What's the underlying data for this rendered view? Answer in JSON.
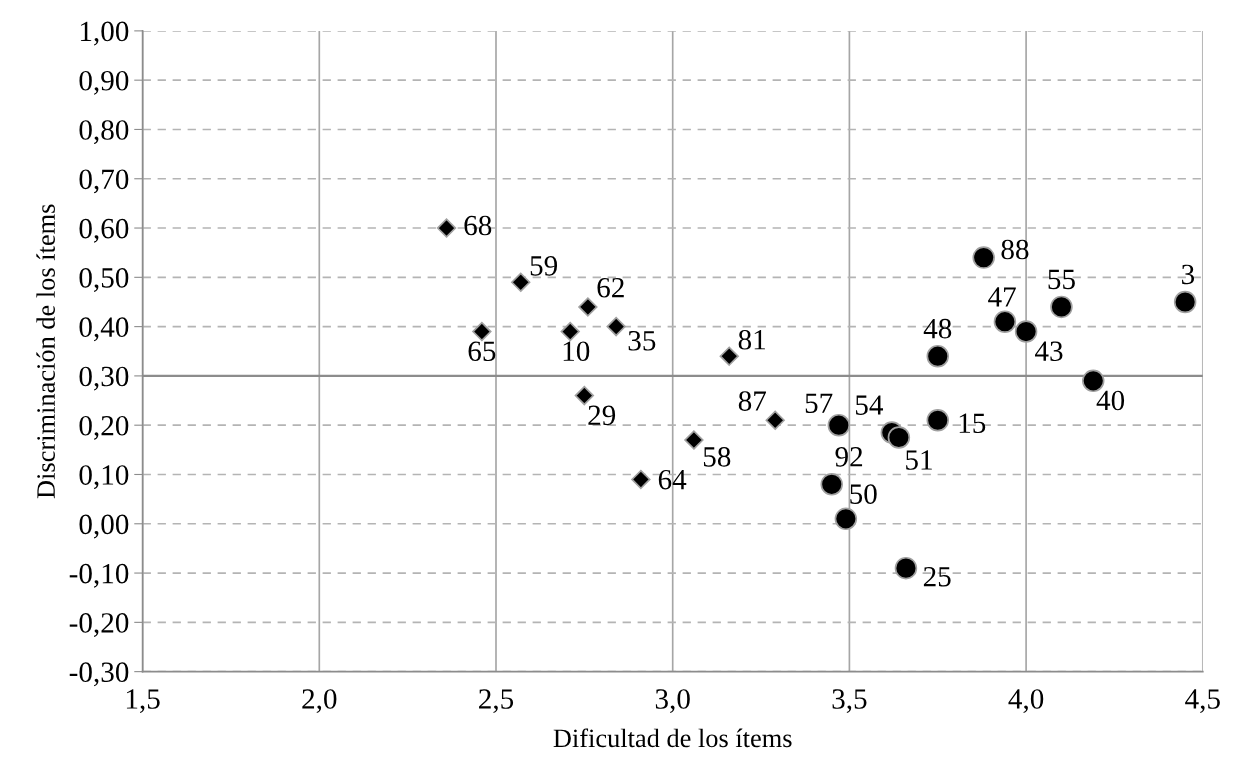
{
  "chart_data": {
    "type": "scatter",
    "xlabel": "Dificultad de los ítems",
    "ylabel": "Discriminación de los ítems",
    "xlim": [
      1.5,
      4.5
    ],
    "xticks": [
      {
        "value": 1.5,
        "label": "1,5"
      },
      {
        "value": 2.0,
        "label": "2,0"
      },
      {
        "value": 2.5,
        "label": "2,5"
      },
      {
        "value": 3.0,
        "label": "3,0"
      },
      {
        "value": 3.5,
        "label": "3,5"
      },
      {
        "value": 4.0,
        "label": "4,0"
      },
      {
        "value": 4.5,
        "label": "4,5"
      }
    ],
    "ylim": [
      -0.3,
      1.0
    ],
    "yticks": [
      {
        "value": -0.3,
        "label": "-0,30"
      },
      {
        "value": -0.2,
        "label": "-0,20"
      },
      {
        "value": -0.1,
        "label": "-0,10"
      },
      {
        "value": 0.0,
        "label": "0,00"
      },
      {
        "value": 0.1,
        "label": "0,10"
      },
      {
        "value": 0.2,
        "label": "0,20"
      },
      {
        "value": 0.3,
        "label": "0,30"
      },
      {
        "value": 0.4,
        "label": "0,40"
      },
      {
        "value": 0.5,
        "label": "0,50"
      },
      {
        "value": 0.6,
        "label": "0,60"
      },
      {
        "value": 0.7,
        "label": "0,70"
      },
      {
        "value": 0.8,
        "label": "0,80"
      },
      {
        "value": 0.9,
        "label": "0,90"
      },
      {
        "value": 1.0,
        "label": "1,00"
      }
    ],
    "grid": true,
    "legend": false,
    "ref_lines": [
      {
        "axis": "y",
        "value": 0.3,
        "color": "#8c8c8c",
        "line_style": "solid"
      }
    ],
    "series": [
      {
        "color": "#000000",
        "marker": "diamond",
        "x": [
          2.36,
          2.57,
          2.46,
          2.76,
          2.71,
          2.84,
          2.75,
          3.16,
          3.29,
          3.06,
          2.91
        ],
        "values": [
          0.6,
          0.49,
          0.39,
          0.44,
          0.39,
          0.4,
          0.26,
          0.34,
          0.21,
          0.17,
          0.09
        ]
      },
      {
        "color": "#000000",
        "marker": "circle",
        "x": [
          3.47,
          3.62,
          3.64,
          3.75,
          3.45,
          3.49,
          3.66,
          4.19,
          3.75,
          3.88,
          3.94,
          4.0,
          4.1,
          4.45
        ],
        "values": [
          0.2,
          0.185,
          0.175,
          0.21,
          0.08,
          0.01,
          -0.09,
          0.29,
          0.34,
          0.54,
          0.41,
          0.39,
          0.44,
          0.45
        ]
      }
    ],
    "annotations": [
      {
        "text": "68",
        "x": 2.36,
        "y": 0.6
      },
      {
        "text": "59",
        "x": 2.57,
        "y": 0.49
      },
      {
        "text": "65",
        "x": 2.46,
        "y": 0.39
      },
      {
        "text": "62",
        "x": 2.76,
        "y": 0.44
      },
      {
        "text": "10",
        "x": 2.71,
        "y": 0.39
      },
      {
        "text": "35",
        "x": 2.84,
        "y": 0.4
      },
      {
        "text": "29",
        "x": 2.75,
        "y": 0.26
      },
      {
        "text": "81",
        "x": 3.16,
        "y": 0.34
      },
      {
        "text": "87",
        "x": 3.29,
        "y": 0.21
      },
      {
        "text": "58",
        "x": 3.06,
        "y": 0.17
      },
      {
        "text": "64",
        "x": 2.91,
        "y": 0.09
      },
      {
        "text": "57",
        "x": 3.47,
        "y": 0.2
      },
      {
        "text": "54",
        "x": 3.62,
        "y": 0.185
      },
      {
        "text": "51",
        "x": 3.64,
        "y": 0.175
      },
      {
        "text": "15",
        "x": 3.75,
        "y": 0.21
      },
      {
        "text": "92",
        "x": 3.45,
        "y": 0.08
      },
      {
        "text": "50",
        "x": 3.49,
        "y": 0.01
      },
      {
        "text": "25",
        "x": 3.66,
        "y": -0.09
      },
      {
        "text": "40",
        "x": 4.19,
        "y": 0.29
      },
      {
        "text": "48",
        "x": 3.75,
        "y": 0.34
      },
      {
        "text": "88",
        "x": 3.88,
        "y": 0.54
      },
      {
        "text": "47",
        "x": 3.94,
        "y": 0.41
      },
      {
        "text": "43",
        "x": 4.0,
        "y": 0.39
      },
      {
        "text": "55",
        "x": 4.1,
        "y": 0.44
      },
      {
        "text": "3",
        "x": 4.45,
        "y": 0.45
      }
    ]
  }
}
